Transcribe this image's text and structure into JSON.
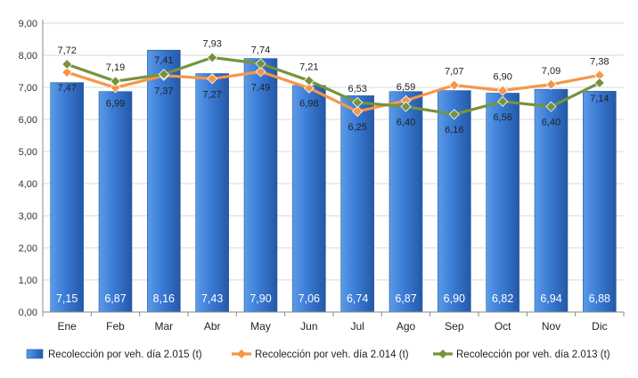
{
  "chart_data": {
    "type": "bar",
    "categories": [
      "Ene",
      "Feb",
      "Mar",
      "Abr",
      "May",
      "Jun",
      "Jul",
      "Ago",
      "Sep",
      "Oct",
      "Nov",
      "Dic"
    ],
    "ylim": [
      0,
      9
    ],
    "yticks": [
      "0,00",
      "1,00",
      "2,00",
      "3,00",
      "4,00",
      "5,00",
      "6,00",
      "7,00",
      "8,00",
      "9,00"
    ],
    "grid": true,
    "legend_position": "bottom",
    "series": [
      {
        "name": "Recolección por veh. día 2.015 (t)",
        "type": "bar",
        "color": "#3a7bd5",
        "values": [
          7.15,
          6.87,
          8.16,
          7.43,
          7.9,
          7.06,
          6.74,
          6.87,
          6.9,
          6.82,
          6.94,
          6.88
        ],
        "labels": [
          "7,15",
          "6,87",
          "8,16",
          "7,43",
          "7,90",
          "7,06",
          "6,74",
          "6,87",
          "6,90",
          "6,82",
          "6,94",
          "6,88"
        ]
      },
      {
        "name": "Recolección por veh. día 2.014 (t)",
        "type": "line",
        "color": "#f79646",
        "values": [
          7.47,
          6.99,
          7.37,
          7.27,
          7.49,
          6.98,
          6.25,
          6.59,
          7.07,
          6.9,
          7.09,
          7.38
        ],
        "labels": [
          "7,47",
          "6,99",
          "7,37",
          "7,27",
          "7,49",
          "6,98",
          "6,25",
          "6,59",
          "7,07",
          "6,90",
          "7,09",
          "7,38"
        ]
      },
      {
        "name": "Recolección por veh. día 2.013 (t)",
        "type": "line",
        "color": "#77933c",
        "values": [
          7.72,
          7.19,
          7.41,
          7.93,
          7.74,
          7.21,
          6.53,
          6.4,
          6.16,
          6.56,
          6.4,
          7.14
        ],
        "labels": [
          "7,72",
          "7,19",
          "7,41",
          "7,93",
          "7,74",
          "7,21",
          "6,53",
          "6,40",
          "6,16",
          "6,56",
          "6,40",
          "7,14"
        ]
      }
    ]
  }
}
